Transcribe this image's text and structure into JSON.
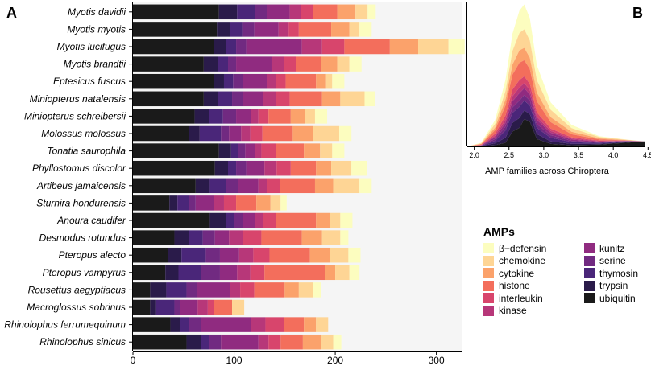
{
  "panels": {
    "a_label": "A",
    "b_label": "B"
  },
  "legend": {
    "title": "AMPs",
    "items": [
      {
        "name": "β−defensin",
        "color": "#fcfdbf"
      },
      {
        "name": "chemokine",
        "color": "#fed595"
      },
      {
        "name": "cytokine",
        "color": "#fba26b"
      },
      {
        "name": "histone",
        "color": "#f36e5c"
      },
      {
        "name": "interleukin",
        "color": "#d8456c"
      },
      {
        "name": "kinase",
        "color": "#b73779"
      },
      {
        "name": "kunitz",
        "color": "#902b80"
      },
      {
        "name": "serine",
        "color": "#712a81"
      },
      {
        "name": "thymosin",
        "color": "#4a2679"
      },
      {
        "name": "trypsin",
        "color": "#2a1b4a"
      },
      {
        "name": "ubiquitin",
        "color": "#1a1a1a"
      }
    ]
  },
  "chart_data": [
    {
      "type": "bar",
      "orientation": "horizontal",
      "stacked": true,
      "categories": [
        "Myotis davidii",
        "Myotis myotis",
        "Myotis lucifugus",
        "Myotis brandtii",
        "Eptesicus fuscus",
        "Miniopterus natalensis",
        "Miniopterus schreibersii",
        "Molossus molossus",
        "Tonatia saurophila",
        "Phyllostomus discolor",
        "Artibeus jamaicensis",
        "Sturnira hondurensis",
        "Anoura caudifer",
        "Desmodus rotundus",
        "Pteropus alecto",
        "Pteropus vampyrus",
        "Rousettus aegyptiacus",
        "Macroglossus sobrinus",
        "Rhinolophus ferrumequinum",
        "Rhinolophus sinicus"
      ],
      "xlim": [
        0,
        325
      ],
      "xticks": [
        0,
        100,
        200,
        300
      ],
      "series": [
        {
          "name": "ubiquitin",
          "values": [
            85,
            83,
            80,
            70,
            80,
            70,
            61,
            55,
            85,
            81,
            62,
            36,
            76,
            41,
            35,
            32,
            17,
            17,
            37,
            53
          ]
        },
        {
          "name": "trypsin",
          "values": [
            18,
            13,
            12,
            14,
            10,
            14,
            14,
            11,
            12,
            13,
            14,
            8,
            16,
            14,
            13,
            13,
            16,
            6,
            10,
            14
          ]
        },
        {
          "name": "thymosin",
          "values": [
            18,
            12,
            10,
            10,
            9,
            14,
            14,
            21,
            7,
            8,
            16,
            11,
            8,
            14,
            24,
            22,
            20,
            18,
            8,
            8
          ]
        },
        {
          "name": "serine",
          "values": [
            12,
            12,
            10,
            8,
            10,
            11,
            13,
            8,
            7,
            10,
            12,
            7,
            9,
            12,
            14,
            19,
            10,
            6,
            12,
            12
          ]
        },
        {
          "name": "kunitz",
          "values": [
            22,
            24,
            55,
            35,
            24,
            20,
            15,
            12,
            10,
            18,
            20,
            18,
            12,
            14,
            19,
            17,
            33,
            17,
            50,
            37
          ]
        },
        {
          "name": "kinase",
          "values": [
            11,
            10,
            20,
            12,
            8,
            12,
            7,
            9,
            6,
            12,
            9,
            10,
            8,
            14,
            14,
            13,
            10,
            10,
            14,
            10
          ]
        },
        {
          "name": "interleukin",
          "values": [
            12,
            10,
            22,
            12,
            10,
            14,
            10,
            12,
            14,
            14,
            12,
            12,
            12,
            18,
            16,
            14,
            14,
            6,
            18,
            12
          ]
        },
        {
          "name": "histone",
          "values": [
            24,
            32,
            45,
            25,
            30,
            32,
            22,
            30,
            28,
            25,
            35,
            20,
            40,
            40,
            40,
            60,
            30,
            18,
            20,
            22
          ]
        },
        {
          "name": "cytokine",
          "values": [
            18,
            18,
            28,
            16,
            10,
            18,
            14,
            20,
            16,
            15,
            18,
            14,
            14,
            20,
            20,
            10,
            14,
            0,
            12,
            18
          ]
        },
        {
          "name": "chemokine",
          "values": [
            12,
            10,
            30,
            12,
            6,
            24,
            10,
            26,
            12,
            20,
            26,
            10,
            10,
            18,
            18,
            14,
            14,
            12,
            12,
            12
          ]
        },
        {
          "name": "β−defensin",
          "values": [
            8,
            12,
            16,
            12,
            12,
            10,
            12,
            12,
            12,
            15,
            12,
            6,
            12,
            8,
            12,
            10,
            8,
            0,
            0,
            8
          ]
        }
      ]
    },
    {
      "type": "area",
      "stacked": true,
      "xlabel": "AMP families across Chiroptera",
      "xlim": [
        1.9,
        4.45
      ],
      "xticks": [
        2.0,
        2.5,
        3.0,
        3.5,
        4.0,
        4.5
      ],
      "x": [
        1.9,
        2.1,
        2.3,
        2.45,
        2.55,
        2.65,
        2.72,
        2.8,
        2.9,
        3.1,
        3.4,
        3.8,
        4.2,
        4.45
      ],
      "series": [
        {
          "name": "ubiquitin",
          "values": [
            0,
            0,
            0.1,
            0.3,
            1.2,
            1.5,
            2.2,
            2.0,
            0.6,
            0.2,
            0.1,
            0.15,
            0.3,
            0.4
          ]
        },
        {
          "name": "trypsin",
          "values": [
            0,
            0.02,
            0.15,
            0.4,
            0.7,
            0.8,
            0.7,
            0.6,
            0.4,
            0.2,
            0.1,
            0.05,
            0.05,
            0
          ]
        },
        {
          "name": "thymosin",
          "values": [
            0,
            0.02,
            0.2,
            0.6,
            0.8,
            0.9,
            0.8,
            0.7,
            0.5,
            0.3,
            0.15,
            0.08,
            0.05,
            0
          ]
        },
        {
          "name": "serine",
          "values": [
            0,
            0.02,
            0.15,
            0.3,
            0.45,
            0.5,
            0.45,
            0.4,
            0.3,
            0.2,
            0.1,
            0.05,
            0.02,
            0
          ]
        },
        {
          "name": "kunitz",
          "values": [
            0,
            0.02,
            0.15,
            0.3,
            0.5,
            0.6,
            0.55,
            0.5,
            0.35,
            0.2,
            0.1,
            0.05,
            0.02,
            0
          ]
        },
        {
          "name": "kinase",
          "values": [
            0,
            0.02,
            0.12,
            0.25,
            0.4,
            0.45,
            0.4,
            0.35,
            0.25,
            0.15,
            0.08,
            0.04,
            0.01,
            0
          ]
        },
        {
          "name": "interleukin",
          "values": [
            0,
            0.02,
            0.15,
            0.35,
            0.55,
            0.6,
            0.55,
            0.5,
            0.35,
            0.2,
            0.1,
            0.05,
            0.01,
            0
          ]
        },
        {
          "name": "histone",
          "values": [
            0,
            0.05,
            0.3,
            0.8,
            1.2,
            1.4,
            1.3,
            1.2,
            0.9,
            0.5,
            0.25,
            0.1,
            0.02,
            0
          ]
        },
        {
          "name": "cytokine",
          "values": [
            0,
            0.03,
            0.2,
            0.5,
            0.8,
            1.0,
            1.0,
            0.9,
            0.7,
            0.4,
            0.2,
            0.08,
            0.02,
            0
          ]
        },
        {
          "name": "chemokine",
          "values": [
            0,
            0.05,
            0.3,
            0.7,
            1.1,
            1.4,
            1.5,
            1.4,
            1.0,
            0.6,
            0.3,
            0.1,
            0.03,
            0
          ]
        },
        {
          "name": "β−defensin",
          "values": [
            0,
            0.05,
            0.3,
            0.9,
            1.4,
            1.8,
            2.0,
            1.8,
            1.2,
            0.6,
            0.25,
            0.08,
            0.02,
            0
          ]
        }
      ]
    }
  ]
}
